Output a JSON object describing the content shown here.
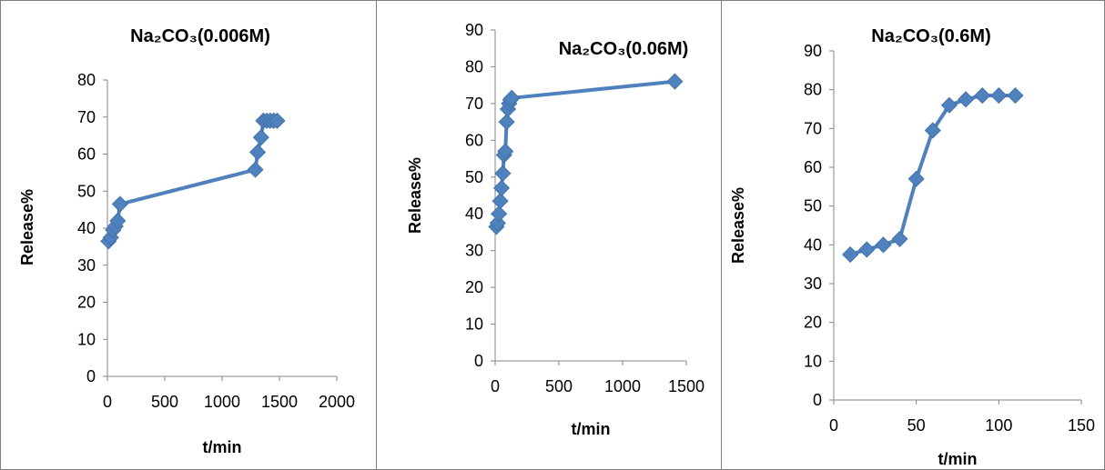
{
  "chart_data": [
    {
      "type": "line",
      "title": "Na₂CO₃(0.006M)",
      "xlabel": "t/min",
      "ylabel": "Release%",
      "xlim": [
        0,
        2000
      ],
      "ylim": [
        0,
        80
      ],
      "xticks": [
        0,
        500,
        1000,
        1500,
        2000
      ],
      "yticks": [
        0,
        10,
        20,
        30,
        40,
        50,
        60,
        70,
        80
      ],
      "grid": false,
      "color": "#4f81bd",
      "marker": "diamond",
      "series": [
        {
          "x": [
            10,
            30,
            50,
            70,
            90,
            110,
            1290,
            1310,
            1340,
            1360,
            1390,
            1420,
            1450,
            1480
          ],
          "y": [
            36.5,
            37.5,
            39.5,
            40.5,
            42,
            46.5,
            55.8,
            60.5,
            64.5,
            69,
            69,
            69,
            69,
            69
          ]
        }
      ]
    },
    {
      "type": "line",
      "title": "Na₂CO₃(0.06M)",
      "xlabel": "t/min",
      "ylabel": "Release%",
      "xlim": [
        0,
        1500
      ],
      "ylim": [
        0,
        90
      ],
      "xticks": [
        0,
        500,
        1000,
        1500
      ],
      "yticks": [
        0,
        10,
        20,
        30,
        40,
        50,
        60,
        70,
        80,
        90
      ],
      "grid": false,
      "color": "#4f81bd",
      "marker": "diamond",
      "series": [
        {
          "x": [
            10,
            20,
            30,
            40,
            50,
            60,
            70,
            80,
            90,
            100,
            110,
            120,
            130,
            1410
          ],
          "y": [
            36.5,
            37.5,
            40,
            43.5,
            47,
            51,
            56,
            57,
            65,
            68.5,
            70,
            71,
            71.5,
            76
          ]
        }
      ]
    },
    {
      "type": "line",
      "title": "Na₂CO₃(0.6M)",
      "xlabel": "t/min",
      "ylabel": "Release%",
      "xlim": [
        0,
        150
      ],
      "ylim": [
        0,
        90
      ],
      "xticks": [
        0,
        50,
        100,
        150
      ],
      "yticks": [
        0,
        10,
        20,
        30,
        40,
        50,
        60,
        70,
        80,
        90
      ],
      "grid": false,
      "color": "#4f81bd",
      "marker": "diamond",
      "series": [
        {
          "x": [
            10,
            20,
            30,
            40,
            50,
            60,
            70,
            80,
            90,
            100,
            110
          ],
          "y": [
            37.5,
            38.8,
            40,
            41.5,
            57,
            69.5,
            76,
            77.5,
            78.5,
            78.5,
            78.5
          ]
        }
      ]
    }
  ]
}
